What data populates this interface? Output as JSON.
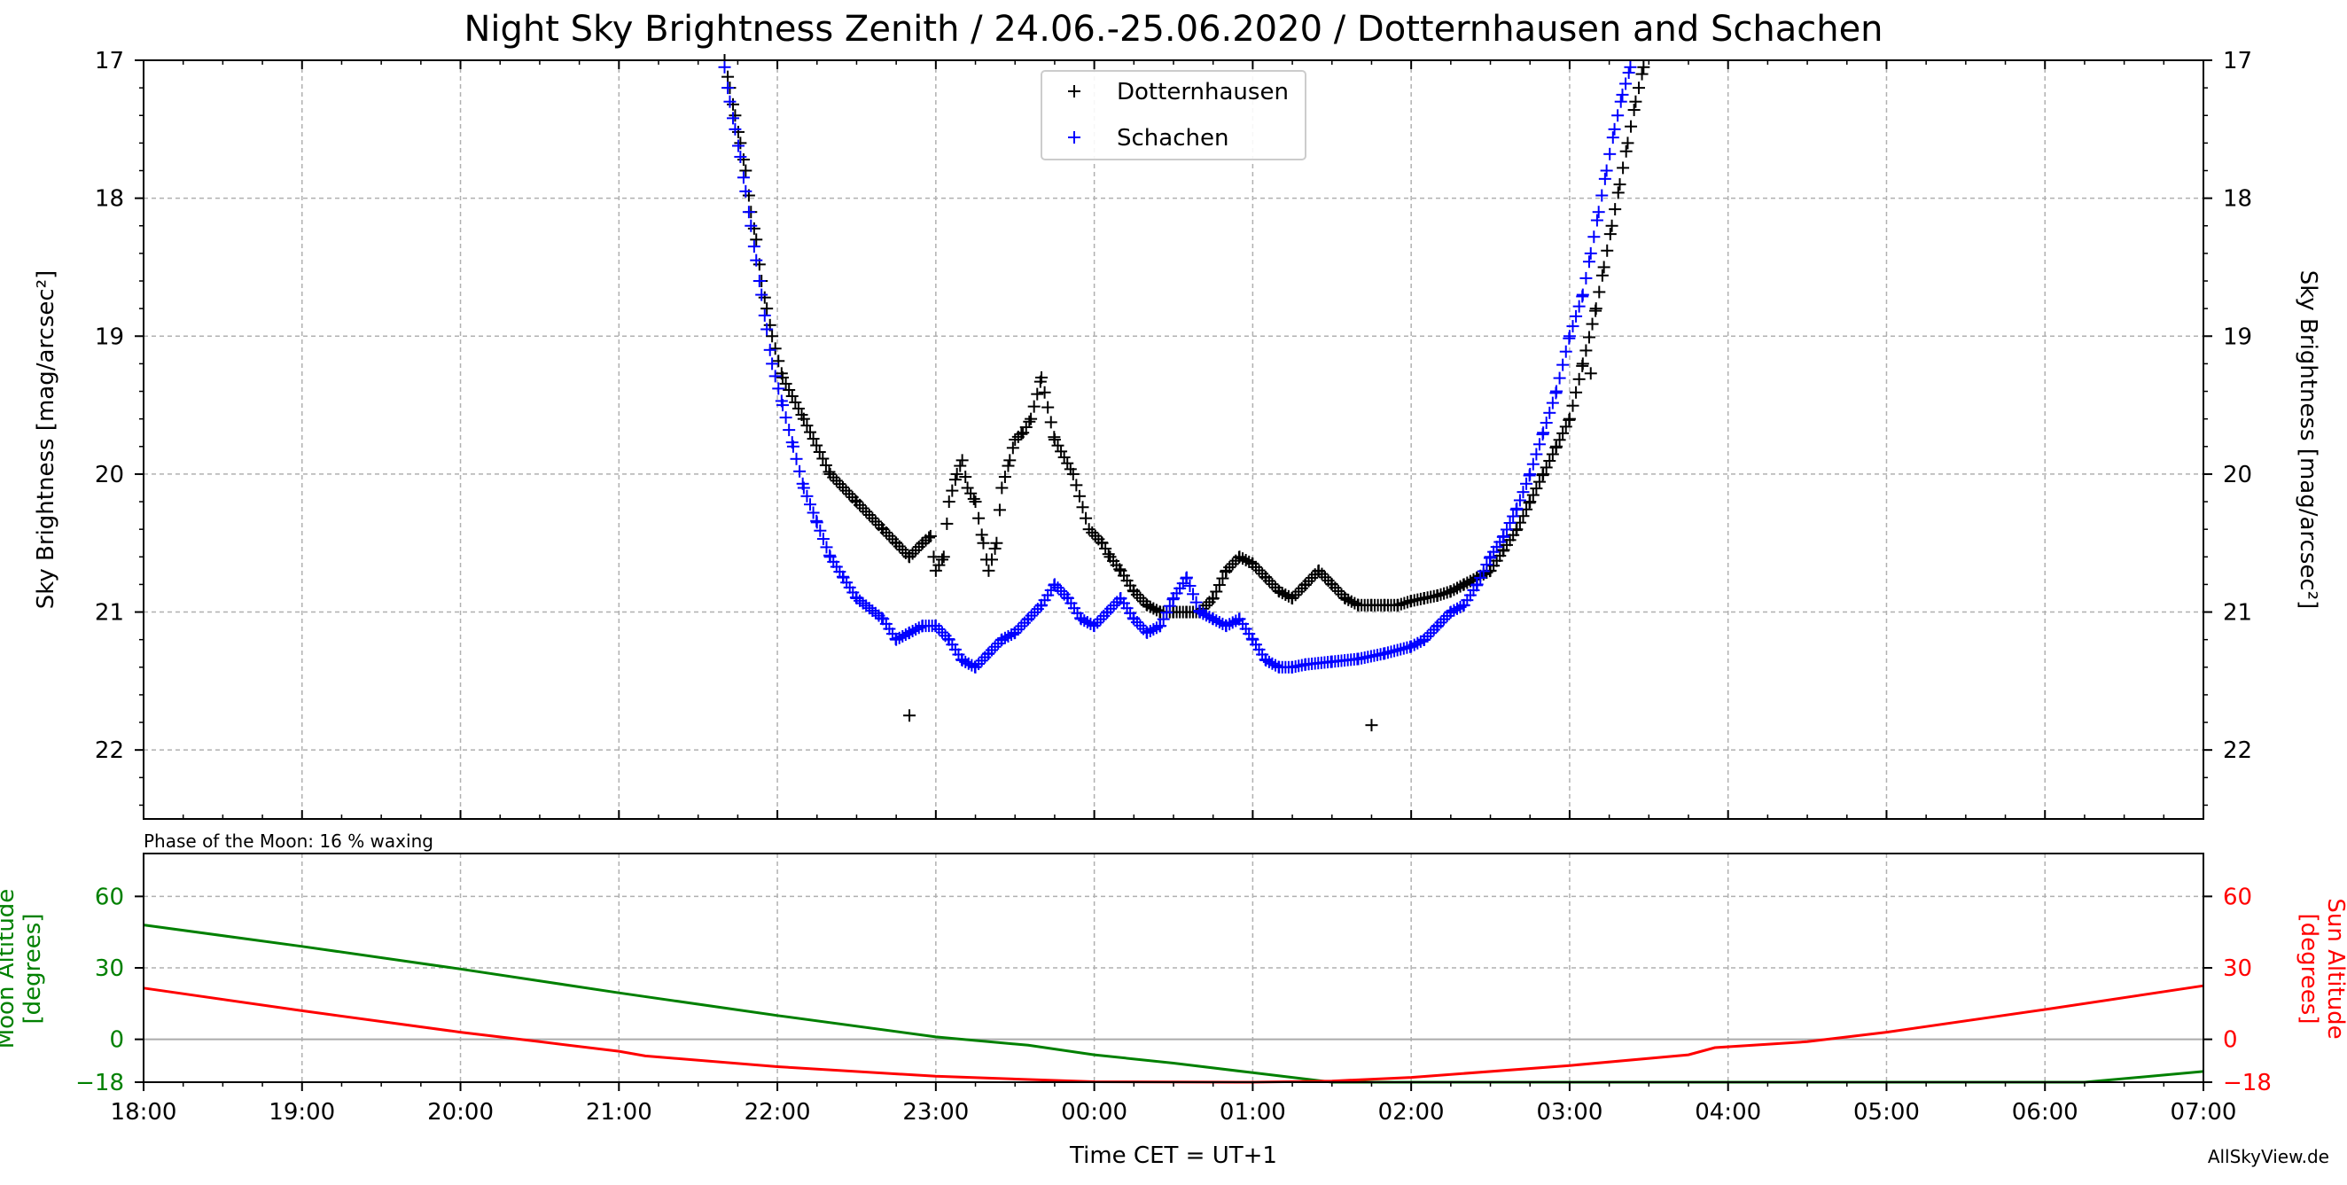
{
  "title": "Night Sky Brightness Zenith / 24.06.-25.06.2020 / Dotternhausen and Schachen",
  "credit": "AllSkyView.de",
  "colors": {
    "dotternhausen": "#000000",
    "schachen": "#0000ff",
    "moon": "#008000",
    "sun": "#ff0000",
    "grid": "#b0b0b0",
    "horizon": "#aaaaaa"
  },
  "chart_data": [
    {
      "type": "scatter",
      "ylabel": "Sky Brightness [mag/arcsec²]",
      "ylabel_right": "Sky Brightness [mag/arcsec²]",
      "ylim": [
        22.5,
        17
      ],
      "y_inverted": true,
      "yticks": [
        17,
        18,
        19,
        20,
        21,
        22
      ],
      "xlim": [
        "18:00",
        "07:00"
      ],
      "xticks": [
        "18:00",
        "19:00",
        "20:00",
        "21:00",
        "22:00",
        "23:00",
        "00:00",
        "01:00",
        "02:00",
        "03:00",
        "04:00",
        "05:00",
        "06:00",
        "07:00"
      ],
      "grid": true,
      "legend": "top-center",
      "series": [
        {
          "name": "Dotternhausen",
          "marker": "+",
          "points": [
            [
              "21:40",
              17.0
            ],
            [
              "21:42",
              17.2
            ],
            [
              "21:44",
              17.4
            ],
            [
              "21:46",
              17.6
            ],
            [
              "21:48",
              17.8
            ],
            [
              "21:50",
              18.1
            ],
            [
              "21:52",
              18.3
            ],
            [
              "21:54",
              18.6
            ],
            [
              "21:56",
              18.8
            ],
            [
              "21:58",
              19.0
            ],
            [
              "22:02",
              19.3
            ],
            [
              "22:10",
              19.6
            ],
            [
              "22:20",
              20.0
            ],
            [
              "22:30",
              20.2
            ],
            [
              "22:40",
              20.4
            ],
            [
              "22:45",
              20.5
            ],
            [
              "22:50",
              20.6
            ],
            [
              "22:55",
              20.5
            ],
            [
              "22:58",
              20.45
            ],
            [
              "23:00",
              20.7
            ],
            [
              "23:03",
              20.6
            ],
            [
              "23:05",
              20.2
            ],
            [
              "23:08",
              20.0
            ],
            [
              "23:10",
              19.9
            ],
            [
              "23:12",
              20.1
            ],
            [
              "23:15",
              20.2
            ],
            [
              "23:18",
              20.5
            ],
            [
              "23:20",
              20.7
            ],
            [
              "23:23",
              20.5
            ],
            [
              "23:25",
              20.1
            ],
            [
              "23:28",
              19.9
            ],
            [
              "23:30",
              19.75
            ],
            [
              "23:33",
              19.7
            ],
            [
              "23:36",
              19.6
            ],
            [
              "23:40",
              19.3
            ],
            [
              "23:45",
              19.75
            ],
            [
              "23:52",
              20.0
            ],
            [
              "23:58",
              20.4
            ],
            [
              "00:03",
              20.5
            ],
            [
              "00:06",
              20.6
            ],
            [
              "00:10",
              20.7
            ],
            [
              "00:15",
              20.85
            ],
            [
              "00:20",
              20.95
            ],
            [
              "00:25",
              21.0
            ],
            [
              "00:30",
              21.0
            ],
            [
              "00:35",
              21.0
            ],
            [
              "00:40",
              21.0
            ],
            [
              "00:45",
              20.9
            ],
            [
              "00:50",
              20.7
            ],
            [
              "00:55",
              20.6
            ],
            [
              "01:00",
              20.65
            ],
            [
              "01:05",
              20.75
            ],
            [
              "01:10",
              20.85
            ],
            [
              "01:15",
              20.9
            ],
            [
              "01:20",
              20.8
            ],
            [
              "01:25",
              20.7
            ],
            [
              "01:30",
              20.8
            ],
            [
              "01:35",
              20.9
            ],
            [
              "01:40",
              20.95
            ],
            [
              "01:45",
              20.95
            ],
            [
              "01:50",
              20.95
            ],
            [
              "01:55",
              20.95
            ],
            [
              "02:00",
              20.92
            ],
            [
              "02:05",
              20.9
            ],
            [
              "02:10",
              20.88
            ],
            [
              "02:15",
              20.85
            ],
            [
              "02:20",
              20.8
            ],
            [
              "02:25",
              20.75
            ],
            [
              "02:30",
              20.7
            ],
            [
              "02:35",
              20.55
            ],
            [
              "02:40",
              20.4
            ],
            [
              "02:45",
              20.2
            ],
            [
              "02:50",
              20.0
            ],
            [
              "02:55",
              19.8
            ],
            [
              "03:00",
              19.6
            ],
            [
              "03:05",
              19.2
            ],
            [
              "03:10",
              18.8
            ],
            [
              "03:13",
              18.5
            ],
            [
              "03:16",
              18.2
            ],
            [
              "03:19",
              17.9
            ],
            [
              "03:22",
              17.6
            ],
            [
              "03:25",
              17.3
            ],
            [
              "03:28",
              17.05
            ]
          ],
          "outliers": [
            [
              "22:50",
              21.75
            ],
            [
              "01:45",
              21.82
            ],
            [
              "03:08",
              19.27
            ]
          ]
        },
        {
          "name": "Schachen",
          "marker": "+",
          "points": [
            [
              "21:40",
              17.05
            ],
            [
              "21:42",
              17.3
            ],
            [
              "21:44",
              17.5
            ],
            [
              "21:46",
              17.7
            ],
            [
              "21:48",
              17.95
            ],
            [
              "21:50",
              18.2
            ],
            [
              "21:52",
              18.45
            ],
            [
              "21:54",
              18.7
            ],
            [
              "21:56",
              18.95
            ],
            [
              "21:58",
              19.2
            ],
            [
              "22:02",
              19.5
            ],
            [
              "22:06",
              19.8
            ],
            [
              "22:10",
              20.1
            ],
            [
              "22:15",
              20.35
            ],
            [
              "22:20",
              20.6
            ],
            [
              "22:25",
              20.75
            ],
            [
              "22:30",
              20.9
            ],
            [
              "22:40",
              21.05
            ],
            [
              "22:45",
              21.2
            ],
            [
              "22:50",
              21.15
            ],
            [
              "22:55",
              21.1
            ],
            [
              "23:00",
              21.1
            ],
            [
              "23:05",
              21.2
            ],
            [
              "23:10",
              21.35
            ],
            [
              "23:15",
              21.4
            ],
            [
              "23:20",
              21.3
            ],
            [
              "23:25",
              21.2
            ],
            [
              "23:30",
              21.15
            ],
            [
              "23:35",
              21.05
            ],
            [
              "23:40",
              20.95
            ],
            [
              "23:45",
              20.8
            ],
            [
              "23:50",
              20.9
            ],
            [
              "23:55",
              21.05
            ],
            [
              "00:00",
              21.1
            ],
            [
              "00:05",
              21.0
            ],
            [
              "00:10",
              20.9
            ],
            [
              "00:15",
              21.05
            ],
            [
              "00:20",
              21.15
            ],
            [
              "00:25",
              21.1
            ],
            [
              "00:30",
              20.9
            ],
            [
              "00:35",
              20.75
            ],
            [
              "00:40",
              21.0
            ],
            [
              "00:45",
              21.05
            ],
            [
              "00:50",
              21.1
            ],
            [
              "00:55",
              21.05
            ],
            [
              "01:00",
              21.2
            ],
            [
              "01:05",
              21.35
            ],
            [
              "01:10",
              21.4
            ],
            [
              "01:15",
              21.4
            ],
            [
              "01:20",
              21.38
            ],
            [
              "01:30",
              21.36
            ],
            [
              "01:40",
              21.34
            ],
            [
              "01:50",
              21.3
            ],
            [
              "02:00",
              21.25
            ],
            [
              "02:05",
              21.2
            ],
            [
              "02:10",
              21.1
            ],
            [
              "02:15",
              21.0
            ],
            [
              "02:20",
              20.95
            ],
            [
              "02:25",
              20.8
            ],
            [
              "02:30",
              20.6
            ],
            [
              "02:35",
              20.45
            ],
            [
              "02:40",
              20.25
            ],
            [
              "02:45",
              20.0
            ],
            [
              "02:50",
              19.7
            ],
            [
              "02:55",
              19.4
            ],
            [
              "03:00",
              19.0
            ],
            [
              "03:05",
              18.7
            ],
            [
              "03:08",
              18.4
            ],
            [
              "03:11",
              18.1
            ],
            [
              "03:14",
              17.8
            ],
            [
              "03:17",
              17.5
            ],
            [
              "03:20",
              17.25
            ],
            [
              "03:23",
              17.05
            ]
          ]
        }
      ]
    },
    {
      "type": "line",
      "annotation": "Phase of the Moon: 16 % waxing",
      "xlabel": "Time CET = UT+1",
      "ylabel": "Moon Altitude\n[degrees]",
      "ylabel_right": "Sun Altitude\n[degrees]",
      "ylim": [
        -18,
        78
      ],
      "yticks": [
        -18,
        0,
        30,
        60
      ],
      "xlim": [
        "18:00",
        "07:00"
      ],
      "xticks": [
        "18:00",
        "19:00",
        "20:00",
        "21:00",
        "22:00",
        "23:00",
        "00:00",
        "01:00",
        "02:00",
        "03:00",
        "04:00",
        "05:00",
        "06:00",
        "07:00"
      ],
      "grid": true,
      "series": [
        {
          "name": "Moon Altitude",
          "points": [
            [
              "18:00",
              48
            ],
            [
              "19:00",
              39
            ],
            [
              "20:00",
              29.5
            ],
            [
              "21:00",
              19.5
            ],
            [
              "22:00",
              10
            ],
            [
              "23:00",
              1
            ],
            [
              "23:35",
              -2.5
            ],
            [
              "00:00",
              -6.5
            ],
            [
              "00:30",
              -10
            ],
            [
              "01:00",
              -14
            ],
            [
              "01:30",
              -18
            ],
            [
              "06:15",
              -18
            ],
            [
              "07:00",
              -13.5
            ]
          ]
        },
        {
          "name": "Sun Altitude",
          "points": [
            [
              "18:00",
              21.5
            ],
            [
              "19:00",
              12
            ],
            [
              "20:00",
              3
            ],
            [
              "20:30",
              -1
            ],
            [
              "21:00",
              -5
            ],
            [
              "21:10",
              -7
            ],
            [
              "22:00",
              -11.5
            ],
            [
              "23:00",
              -15.5
            ],
            [
              "00:00",
              -17.8
            ],
            [
              "01:00",
              -18
            ],
            [
              "01:30",
              -17.5
            ],
            [
              "02:00",
              -16
            ],
            [
              "03:00",
              -11
            ],
            [
              "03:45",
              -6.5
            ],
            [
              "03:55",
              -3.5
            ],
            [
              "04:30",
              -1
            ],
            [
              "05:00",
              3
            ],
            [
              "06:00",
              12.5
            ],
            [
              "07:00",
              22.5
            ]
          ]
        }
      ]
    }
  ]
}
